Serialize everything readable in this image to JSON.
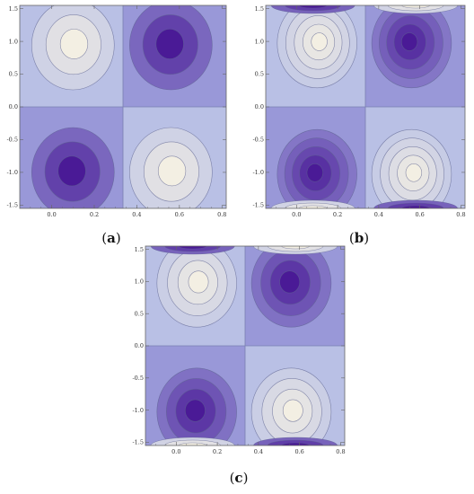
{
  "captions": {
    "a": "a",
    "b": "b",
    "c": "c"
  },
  "chart_data": [
    {
      "id": "a",
      "type": "heatmap",
      "subtype": "contour",
      "title": "",
      "xlabel": "",
      "ylabel": "",
      "xlim": [
        -0.15,
        0.82
      ],
      "ylim": [
        -1.55,
        1.55
      ],
      "xticks": [
        "0.0",
        "0.2",
        "0.4",
        "0.6",
        "0.8"
      ],
      "yticks": [
        "1.5",
        "1.0",
        "0.5",
        "0.0",
        "-0.5",
        "-1.0",
        "-1.5"
      ],
      "divider_x": 0.335,
      "divider_y": 0.0,
      "levels": 3,
      "extrema": [
        {
          "x": 0.1,
          "y": 0.97,
          "sign": "max"
        },
        {
          "x": 0.56,
          "y": 0.97,
          "sign": "min"
        },
        {
          "x": 0.1,
          "y": -0.97,
          "sign": "min"
        },
        {
          "x": 0.56,
          "y": -0.97,
          "sign": "max"
        }
      ],
      "edge_lobes": false
    },
    {
      "id": "b",
      "type": "heatmap",
      "subtype": "contour",
      "title": "",
      "xlabel": "",
      "ylabel": "",
      "xlim": [
        -0.15,
        0.82
      ],
      "ylim": [
        -1.55,
        1.55
      ],
      "xticks": [
        "0.0",
        "0.2",
        "0.4",
        "0.6",
        "0.8"
      ],
      "yticks": [
        "1.5",
        "1.0",
        "0.5",
        "0.0",
        "-0.5",
        "-1.0",
        "-1.5"
      ],
      "divider_x": 0.335,
      "divider_y": 0.0,
      "levels": 5,
      "extrema": [
        {
          "x": 0.1,
          "y": 1.0,
          "sign": "max"
        },
        {
          "x": 0.56,
          "y": 1.0,
          "sign": "min"
        },
        {
          "x": 0.1,
          "y": -1.0,
          "sign": "min"
        },
        {
          "x": 0.56,
          "y": -1.0,
          "sign": "max"
        }
      ],
      "edge_lobes": true
    },
    {
      "id": "c",
      "type": "heatmap",
      "subtype": "contour",
      "title": "",
      "xlabel": "",
      "ylabel": "",
      "xlim": [
        -0.15,
        0.82
      ],
      "ylim": [
        -1.55,
        1.55
      ],
      "xticks": [
        "0.0",
        "0.2",
        "0.4",
        "0.6",
        "0.8"
      ],
      "yticks": [
        "1.5",
        "1.0",
        "0.5",
        "0.0",
        "-0.5",
        "-1.0",
        "-1.5"
      ],
      "divider_x": 0.335,
      "divider_y": 0.0,
      "levels": 4,
      "extrema": [
        {
          "x": 0.1,
          "y": 1.0,
          "sign": "max"
        },
        {
          "x": 0.56,
          "y": 1.0,
          "sign": "min"
        },
        {
          "x": 0.1,
          "y": -1.0,
          "sign": "min"
        },
        {
          "x": 0.56,
          "y": -1.0,
          "sign": "max"
        }
      ],
      "edge_lobes": true
    }
  ],
  "colors": {
    "light": "#f3efe3",
    "neutral": "#aab4e6",
    "dark": "#4a1a96",
    "frame": "#666666",
    "divider": "#7a80b0"
  }
}
